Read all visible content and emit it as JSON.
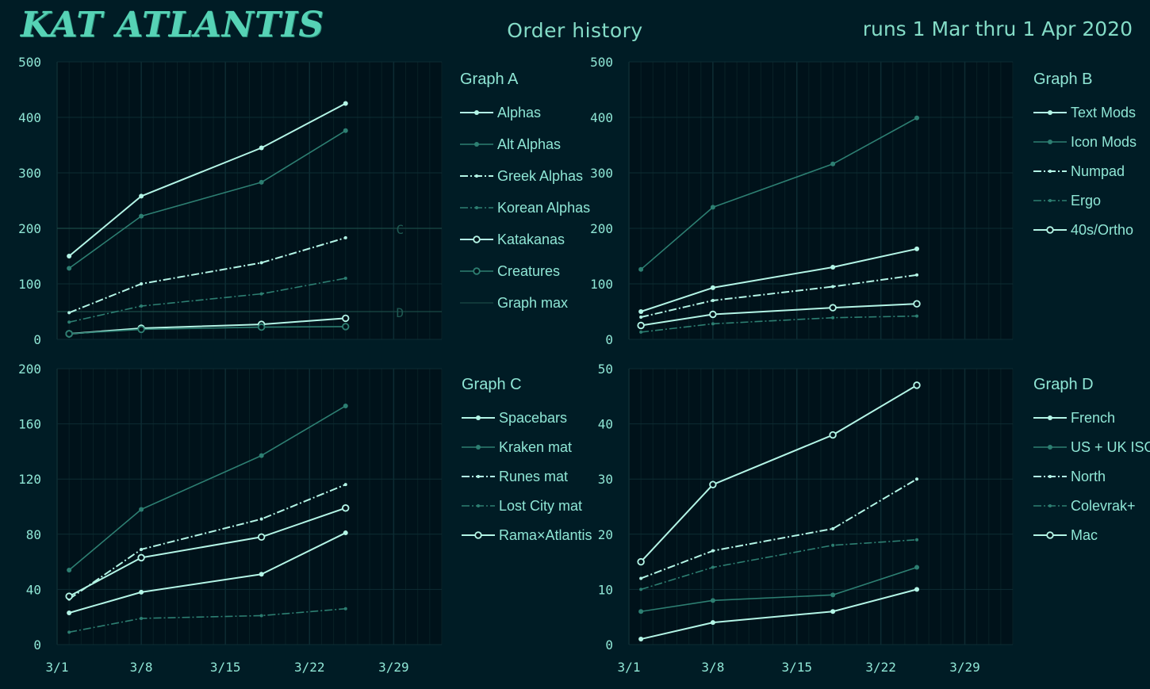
{
  "header": {
    "logo": "KAT ATLANTIS",
    "title": "Order history",
    "date_range": "runs 1 Mar thru 1 Apr 2020"
  },
  "colors": {
    "background": "#001c25",
    "plot_background": "#00121a",
    "grid_major": "#0d2c33",
    "grid_minor": "#082126",
    "light": "#b3f5e6",
    "dark": "#2d7f72",
    "text": "#8fe6d5"
  },
  "x_axis": {
    "tick_labels": [
      "3/1",
      "3/8",
      "3/15",
      "3/22",
      "3/29"
    ],
    "tick_days": [
      1,
      8,
      15,
      22,
      29
    ],
    "range_days": [
      1,
      33
    ]
  },
  "chart_data": [
    {
      "type": "line",
      "title": "Graph A",
      "x": [
        "2020-03-02",
        "2020-03-08",
        "2020-03-18",
        "2020-03-25"
      ],
      "ylim": [
        0,
        500
      ],
      "y_ticks": [
        0,
        100,
        200,
        300,
        400,
        500
      ],
      "series": [
        {
          "name": "Alphas",
          "values": [
            150,
            258,
            345,
            425
          ],
          "color": "light",
          "dash": "solid",
          "marker": "dot"
        },
        {
          "name": "Alt Alphas",
          "values": [
            128,
            222,
            283,
            376
          ],
          "color": "dark",
          "dash": "solid",
          "marker": "dot"
        },
        {
          "name": "Greek Alphas",
          "values": [
            48,
            100,
            138,
            183
          ],
          "color": "light",
          "dash": "dashdot",
          "marker": "small"
        },
        {
          "name": "Korean Alphas",
          "values": [
            31,
            60,
            82,
            110
          ],
          "color": "dark",
          "dash": "dashdot",
          "marker": "small"
        },
        {
          "name": "Katakanas",
          "values": [
            10,
            20,
            27,
            38
          ],
          "color": "light",
          "dash": "solid",
          "marker": "ring"
        },
        {
          "name": "Creatures",
          "values": [
            10,
            18,
            22,
            23
          ],
          "color": "dark",
          "dash": "solid",
          "marker": "ring"
        }
      ],
      "reference_lines": [
        {
          "label": "C",
          "value": 200
        },
        {
          "label": "D",
          "value": 50
        }
      ],
      "reference_legend": "Graph max"
    },
    {
      "type": "line",
      "title": "Graph B",
      "x": [
        "2020-03-02",
        "2020-03-08",
        "2020-03-18",
        "2020-03-25"
      ],
      "ylim": [
        0,
        500
      ],
      "y_ticks": [
        0,
        100,
        200,
        300,
        400,
        500
      ],
      "series": [
        {
          "name": "Text Mods",
          "values": [
            50,
            93,
            130,
            163
          ],
          "color": "light",
          "dash": "solid",
          "marker": "dot"
        },
        {
          "name": "Icon Mods",
          "values": [
            126,
            238,
            316,
            399
          ],
          "color": "dark",
          "dash": "solid",
          "marker": "dot"
        },
        {
          "name": "Numpad",
          "values": [
            40,
            70,
            95,
            116
          ],
          "color": "light",
          "dash": "dashdot",
          "marker": "small"
        },
        {
          "name": "Ergo",
          "values": [
            13,
            28,
            39,
            42
          ],
          "color": "dark",
          "dash": "dashdot",
          "marker": "small"
        },
        {
          "name": "40s/Ortho",
          "values": [
            25,
            45,
            57,
            64
          ],
          "color": "light",
          "dash": "solid",
          "marker": "ring"
        }
      ]
    },
    {
      "type": "line",
      "title": "Graph C",
      "x": [
        "2020-03-02",
        "2020-03-08",
        "2020-03-18",
        "2020-03-25"
      ],
      "ylim": [
        0,
        200
      ],
      "y_ticks": [
        0,
        40,
        80,
        120,
        160,
        200
      ],
      "series": [
        {
          "name": "Spacebars",
          "values": [
            23,
            38,
            51,
            81
          ],
          "color": "light",
          "dash": "solid",
          "marker": "dot"
        },
        {
          "name": "Kraken mat",
          "values": [
            54,
            98,
            137,
            173
          ],
          "color": "dark",
          "dash": "solid",
          "marker": "dot"
        },
        {
          "name": "Runes mat",
          "values": [
            33,
            69,
            91,
            116
          ],
          "color": "light",
          "dash": "dashdot",
          "marker": "small"
        },
        {
          "name": "Lost City mat",
          "values": [
            9,
            19,
            21,
            26
          ],
          "color": "dark",
          "dash": "dashdot",
          "marker": "small"
        },
        {
          "name": "Rama×Atlantis",
          "values": [
            35,
            63,
            78,
            99
          ],
          "color": "light",
          "dash": "solid",
          "marker": "ring"
        }
      ]
    },
    {
      "type": "line",
      "title": "Graph D",
      "x": [
        "2020-03-02",
        "2020-03-08",
        "2020-03-18",
        "2020-03-25"
      ],
      "ylim": [
        0,
        50
      ],
      "y_ticks": [
        0,
        10,
        20,
        30,
        40,
        50
      ],
      "series": [
        {
          "name": "French",
          "values": [
            1,
            4,
            6,
            10
          ],
          "color": "light",
          "dash": "solid",
          "marker": "dot"
        },
        {
          "name": "US + UK ISO",
          "values": [
            6,
            8,
            9,
            14
          ],
          "color": "dark",
          "dash": "solid",
          "marker": "dot"
        },
        {
          "name": "North",
          "values": [
            12,
            17,
            21,
            30
          ],
          "color": "light",
          "dash": "dashdot",
          "marker": "small"
        },
        {
          "name": "Colevrak+",
          "values": [
            10,
            14,
            18,
            19
          ],
          "color": "dark",
          "dash": "dashdot",
          "marker": "small"
        },
        {
          "name": "Mac",
          "values": [
            15,
            29,
            38,
            47
          ],
          "color": "light",
          "dash": "solid",
          "marker": "ring"
        }
      ]
    }
  ]
}
